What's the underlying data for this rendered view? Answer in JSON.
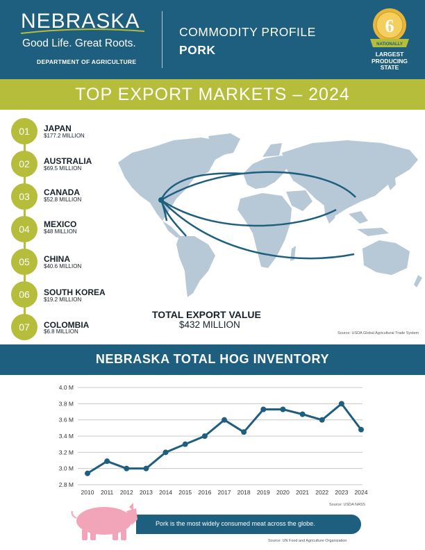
{
  "header": {
    "logo_word": "NEBRASKA",
    "logo_tagline": "Good Life. Great Roots.",
    "logo_dept": "DEPARTMENT OF AGRICULTURE",
    "profile_label": "COMMODITY PROFILE",
    "profile_value": "PORK",
    "badge": {
      "rank": "6",
      "ribbon": "NATIONALLY",
      "caption_lines": [
        "LARGEST",
        "PRODUCING",
        "STATE"
      ]
    }
  },
  "markets": {
    "title": "TOP EXPORT MARKETS – 2024",
    "items": [
      {
        "rank": "01",
        "country": "JAPAN",
        "value": "$177.2 MILLION"
      },
      {
        "rank": "02",
        "country": "AUSTRALIA",
        "value": "$69.5 MILLION"
      },
      {
        "rank": "03",
        "country": "CANADA",
        "value": "$52.8 MILLION"
      },
      {
        "rank": "04",
        "country": "MEXICO",
        "value": "$48 MILLION"
      },
      {
        "rank": "05",
        "country": "CHINA",
        "value": "$40.6 MILLION"
      },
      {
        "rank": "06",
        "country": "SOUTH KOREA",
        "value": "$19.2 MILLION"
      },
      {
        "rank": "07",
        "country": "COLOMBIA",
        "value": "$6.8 MILLION"
      }
    ],
    "total_label": "TOTAL EXPORT VALUE",
    "total_value": "$432 MILLION",
    "source": "Source: USDA Global Agricultural Trade System"
  },
  "inventory": {
    "title": "NEBRASKA TOTAL HOG INVENTORY",
    "source": "Source: USDA NASS"
  },
  "chart_data": {
    "type": "line",
    "x": [
      "2010",
      "2011",
      "2012",
      "2013",
      "2014",
      "2015",
      "2016",
      "2017",
      "2018",
      "2019",
      "2020",
      "2021",
      "2022",
      "2023",
      "2024"
    ],
    "series": [
      {
        "values": [
          2.94,
          3.09,
          3.0,
          3.0,
          3.2,
          3.3,
          3.4,
          3.6,
          3.45,
          3.73,
          3.73,
          3.67,
          3.6,
          3.8,
          3.48
        ]
      }
    ],
    "ylim": [
      2.8,
      4.0
    ],
    "yticks": [
      2.8,
      3.0,
      3.2,
      3.4,
      3.6,
      3.8,
      4.0
    ],
    "ytick_labels": [
      "2.8 M",
      "3.0 M",
      "3.2 M",
      "3.4 M",
      "3.6 M",
      "3.8 M",
      "4.0 M"
    ],
    "grid": true,
    "color": "#1e5e7e"
  },
  "footer": {
    "banner_text": "Pork is the most widely consumed meat across the globe.",
    "source": "Source: UN Food and Agriculture Organization"
  },
  "colors": {
    "navy": "#1e5e7e",
    "green": "#b5bd3a",
    "map_land": "#b7c9d6",
    "pig_pink": "#f2a5b8",
    "gold": "#e9b53a"
  }
}
